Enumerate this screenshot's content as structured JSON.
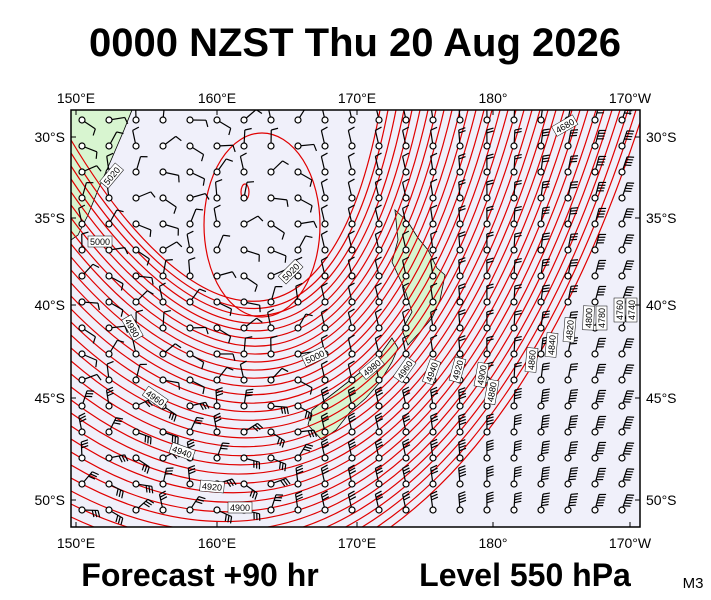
{
  "title": "0000 NZST Thu 20 Aug 2026",
  "lon_labels": [
    "150°E",
    "160°E",
    "170°E",
    "180°",
    "170°W"
  ],
  "lat_labels": [
    "30°S",
    "35°S",
    "40°S",
    "45°S",
    "50°S"
  ],
  "contour_labels": [
    5020,
    5000,
    4980,
    4960,
    4940,
    4920,
    4900,
    5020,
    5000,
    4980,
    4960,
    4940,
    4920,
    4900,
    4880,
    4860,
    4840,
    4820,
    4800,
    4780,
    4760,
    4740,
    4680
  ],
  "footer": {
    "forecast": "Forecast +90 hr",
    "level": "Level 550 hPa",
    "model": "M3"
  }
}
